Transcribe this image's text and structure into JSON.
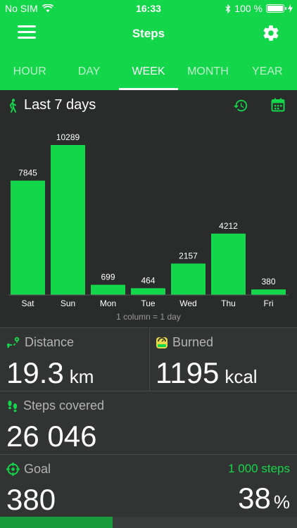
{
  "status_bar": {
    "carrier": "No SIM",
    "time": "16:33",
    "battery": "100 %"
  },
  "header": {
    "title": "Steps"
  },
  "tabs": [
    {
      "label": "HOUR",
      "active": false
    },
    {
      "label": "DAY",
      "active": false
    },
    {
      "label": "WEEK",
      "active": true
    },
    {
      "label": "MONTH",
      "active": false
    },
    {
      "label": "YEAR",
      "active": false
    }
  ],
  "chart_header": {
    "title": "Last 7 days"
  },
  "chart_data": {
    "type": "bar",
    "categories": [
      "Sat",
      "Sun",
      "Mon",
      "Tue",
      "Wed",
      "Thu",
      "Fri"
    ],
    "values": [
      7845,
      10289,
      699,
      464,
      2157,
      4212,
      380
    ],
    "color": "#13d64a",
    "grid": false,
    "footnote": "1 column = 1 day"
  },
  "stats": {
    "distance": {
      "label": "Distance",
      "value": "19.3",
      "unit": "km"
    },
    "burned": {
      "label": "Burned",
      "value": "1195",
      "unit": "kcal"
    },
    "steps": {
      "label": "Steps covered",
      "value": "26 046"
    },
    "goal": {
      "label": "Goal",
      "target": "1 000 steps",
      "value": "380",
      "percent": "38",
      "percent_symbol": "%",
      "progress": 0.38
    }
  },
  "colors": {
    "accent": "#13d64a",
    "background": "#2a2b2b",
    "panel": "#323333",
    "progress": "#1a9b3c"
  }
}
